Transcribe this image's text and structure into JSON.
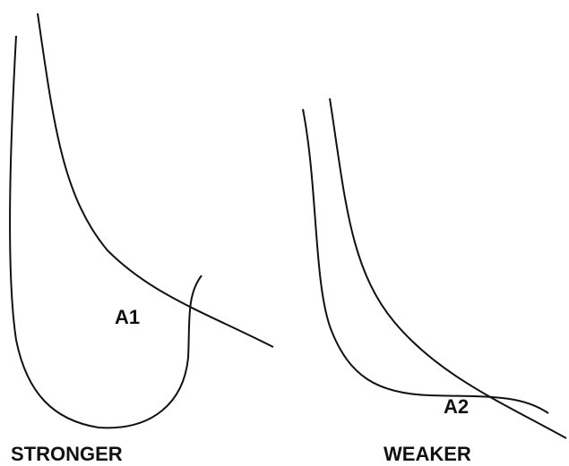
{
  "panels": [
    {
      "area_label": "A1",
      "caption": "STRONGER"
    },
    {
      "area_label": "A2",
      "caption": "WEAKER"
    }
  ]
}
